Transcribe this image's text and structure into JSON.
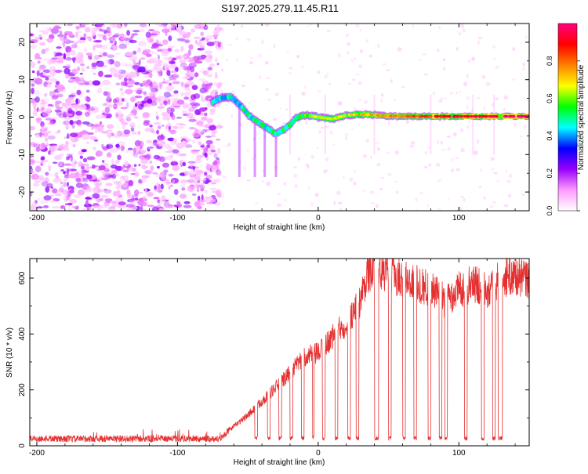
{
  "title": "S197.2025.279.11.45.R11",
  "colors": {
    "snr_line": "#e53030",
    "frame": "#000000",
    "spectro_background": "#ffffff",
    "noise_hue": "#7a2cf0"
  },
  "chart_data": [
    {
      "type": "heatmap",
      "xlabel": "Height of straight line (km)",
      "ylabel": "Frequency (Hz)",
      "xlim": [
        -205,
        150
      ],
      "ylim": [
        -25,
        25
      ],
      "x_ticks": [
        -200,
        -100,
        0,
        100
      ],
      "y_ticks": [
        20,
        10,
        0,
        -10,
        -20
      ],
      "tone_track": {
        "x": [
          -75,
          -70,
          -62,
          -55,
          -48,
          -42,
          -36,
          -30,
          -25,
          -20,
          -15,
          -8,
          0,
          10,
          20,
          30,
          50,
          80,
          110,
          150
        ],
        "freq_hz": [
          4,
          5,
          5.5,
          3,
          0,
          -1.5,
          -3,
          -4.5,
          -3.5,
          -2,
          0,
          0.5,
          0,
          -0.5,
          0.5,
          0.8,
          0.3,
          0.2,
          0.2,
          0.2
        ]
      },
      "colorbar": {
        "label": "Normalized spectral amplitude",
        "range": [
          0,
          1
        ],
        "ticks": [
          0.0,
          0.2,
          0.4,
          0.6,
          0.8
        ],
        "stops": [
          "#ffffff",
          "#ff99ff",
          "#9900ff",
          "#0000ff",
          "#00ffff",
          "#00ff00",
          "#ffff00",
          "#ff8000",
          "#ff0000",
          "#ff0080"
        ]
      }
    },
    {
      "type": "line",
      "xlabel": "Height of straight line (km)",
      "ylabel": "SNR (10 * v/v)",
      "xlim": [
        -205,
        150
      ],
      "ylim": [
        0,
        670
      ],
      "x_ticks": [
        -200,
        -100,
        0,
        100
      ],
      "y_ticks": [
        0,
        200,
        400,
        600
      ],
      "envelope": {
        "x": [
          -205,
          -150,
          -70,
          -60,
          -50,
          -40,
          -30,
          -20,
          -10,
          0,
          10,
          20,
          30,
          35,
          50,
          60,
          70,
          80,
          90,
          100,
          110,
          120,
          130,
          140,
          150
        ],
        "snr": [
          25,
          25,
          25,
          70,
          110,
          160,
          210,
          260,
          320,
          330,
          390,
          440,
          520,
          620,
          620,
          600,
          580,
          560,
          520,
          560,
          580,
          560,
          600,
          610,
          590
        ]
      },
      "dropouts": [
        {
          "from": -45,
          "to": -43
        },
        {
          "from": -36,
          "to": -34
        },
        {
          "from": -28,
          "to": -26
        },
        {
          "from": -20,
          "to": -18
        },
        {
          "from": -12,
          "to": -10
        },
        {
          "from": -4,
          "to": -3
        },
        {
          "from": 3,
          "to": 5
        },
        {
          "from": 12,
          "to": 14
        },
        {
          "from": 21,
          "to": 23
        },
        {
          "from": 27,
          "to": 29
        },
        {
          "from": 40,
          "to": 43
        },
        {
          "from": 50,
          "to": 52
        },
        {
          "from": 60,
          "to": 62
        },
        {
          "from": 68,
          "to": 70
        },
        {
          "from": 78,
          "to": 80
        },
        {
          "from": 86,
          "to": 88
        },
        {
          "from": 90,
          "to": 92
        },
        {
          "from": 104,
          "to": 106
        },
        {
          "from": 116,
          "to": 118
        },
        {
          "from": 124,
          "to": 126
        },
        {
          "from": 128,
          "to": 131
        }
      ]
    }
  ]
}
